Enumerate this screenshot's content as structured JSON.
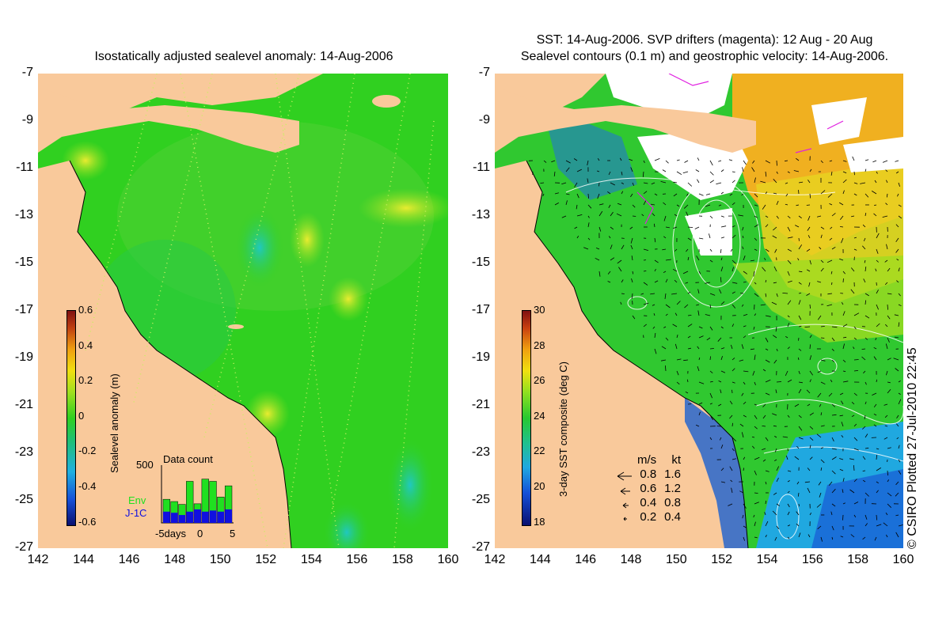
{
  "left_panel": {
    "title": "Isostatically adjusted sealevel anomaly: 14-Aug-2006",
    "colorbar": {
      "label": "Sealevel anomaly (m)",
      "ticks": [
        "0.6",
        "0.4",
        "0.2",
        "0",
        "-0.2",
        "-0.4",
        "-0.6"
      ],
      "colors": [
        "#801010",
        "#f0a010",
        "#f0e010",
        "#30d020",
        "#20b0e0",
        "#1650d8",
        "#0a1070"
      ]
    },
    "data_count": {
      "title": "Data count",
      "ymax_label": "500",
      "legend_env": "Env",
      "legend_j1c": "J-1C",
      "env_color": "#20e020",
      "j1c_color": "#1010e0",
      "xaxis_labels": [
        "-5days",
        "0",
        "5"
      ],
      "env_values": [
        0.42,
        0.38,
        0.33,
        0.74,
        0.34,
        0.78,
        0.74,
        0.46,
        0.66
      ],
      "j1c_values": [
        0.2,
        0.18,
        0.14,
        0.2,
        0.24,
        0.2,
        0.22,
        0.2,
        0.24
      ]
    }
  },
  "right_panel": {
    "title_line1": "SST: 14-Aug-2006. SVP drifters (magenta): 12 Aug - 20 Aug",
    "title_line2": "Sealevel contours (0.1 m) and geostrophic velocity: 14-Aug-2006.",
    "colorbar": {
      "label": "3-day SST composite (deg C)",
      "ticks": [
        "30",
        "28",
        "26",
        "24",
        "22",
        "20",
        "18"
      ]
    },
    "velocity_legend": {
      "header_ms": "m/s",
      "header_kt": "kt",
      "rows": [
        {
          "ms": "0.8",
          "kt": "1.6"
        },
        {
          "ms": "0.6",
          "kt": "1.2"
        },
        {
          "ms": "0.4",
          "kt": "0.8"
        },
        {
          "ms": "0.2",
          "kt": "0.4"
        }
      ]
    }
  },
  "axes": {
    "y_ticks": [
      "-7",
      "-9",
      "-11",
      "-13",
      "-15",
      "-17",
      "-19",
      "-21",
      "-23",
      "-25",
      "-27"
    ],
    "x_ticks": [
      "142",
      "144",
      "146",
      "148",
      "150",
      "152",
      "154",
      "156",
      "158",
      "160"
    ]
  },
  "credit": "© CSIRO Plotted 27-Jul-2010 22:45",
  "colors": {
    "land": "#f9c99b",
    "ocean_green": "#30d020",
    "light_green": "#90e020"
  }
}
